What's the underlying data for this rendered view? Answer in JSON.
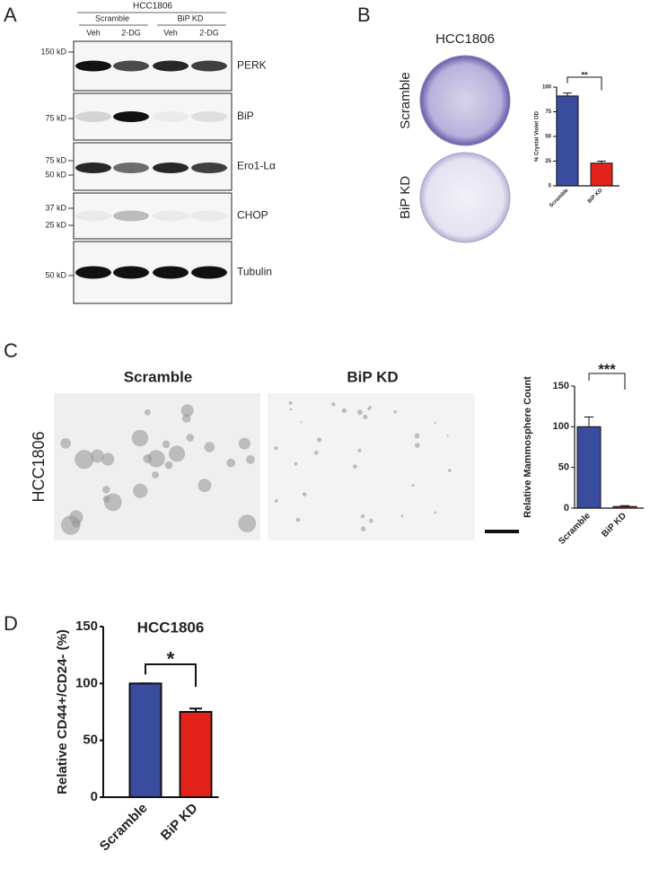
{
  "panel_labels": [
    "A",
    "B",
    "C",
    "D"
  ],
  "blot": {
    "cell_line": "HCC1806",
    "groups": [
      "Scramble",
      "BiP KD"
    ],
    "lanes": [
      "Veh",
      "2-DG",
      "Veh",
      "2-DG"
    ],
    "rows": [
      {
        "protein": "PERK",
        "markers": [
          "150 kD"
        ]
      },
      {
        "protein": "BiP",
        "markers": [
          "75 kD"
        ]
      },
      {
        "protein": "Ero1-Lα",
        "markers": [
          "75 kD",
          "50 kD"
        ]
      },
      {
        "protein": "CHOP",
        "markers": [
          "37 kD",
          "25 kD"
        ]
      },
      {
        "protein": "Tubulin",
        "markers": [
          "50 kD"
        ]
      }
    ]
  },
  "crystal_violet": {
    "title": "HCC1806",
    "rows": [
      "Scramble",
      "BiP KD"
    ]
  },
  "mammosphere_images": {
    "cell_line": "HCC1806",
    "columns": [
      "Scramble",
      "BiP KD"
    ]
  },
  "chart_data": [
    {
      "type": "bar",
      "ylabel": "% Crystal Violet OD",
      "categories": [
        "Scramble",
        "BiP KD"
      ],
      "values": [
        91,
        23
      ],
      "errors": [
        3,
        2
      ],
      "colors": [
        "#3a4c9e",
        "#e3231b"
      ],
      "ylim": [
        0,
        100
      ],
      "yticks": [
        0,
        25,
        50,
        75,
        100
      ],
      "annotation": "**"
    },
    {
      "type": "bar",
      "ylabel": "Relative Mammosphere Count",
      "categories": [
        "Scramble",
        "BiP KD"
      ],
      "values": [
        100,
        2
      ],
      "errors": [
        12,
        1
      ],
      "colors": [
        "#3a4c9e",
        "#e3231b"
      ],
      "ylim": [
        0,
        150
      ],
      "yticks": [
        0,
        50,
        100,
        150
      ],
      "annotation": "***"
    },
    {
      "type": "bar",
      "title": "HCC1806",
      "ylabel": "Relative CD44+/CD24- (%)",
      "categories": [
        "Scramble",
        "BiP KD"
      ],
      "values": [
        100,
        75
      ],
      "errors": [
        0,
        3
      ],
      "colors": [
        "#3a4c9e",
        "#e3231b"
      ],
      "ylim": [
        0,
        150
      ],
      "yticks": [
        0,
        50,
        100,
        150
      ],
      "annotation": "*"
    }
  ]
}
